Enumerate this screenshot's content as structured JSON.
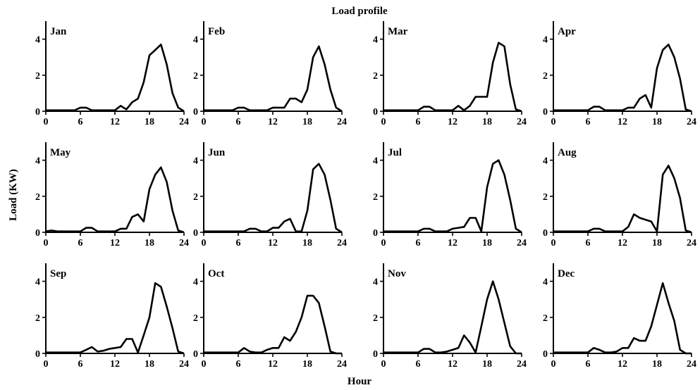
{
  "figure": {
    "title": "Load profile",
    "xlabel": "Hour",
    "ylabel": "Load (KW)"
  },
  "chart_data": {
    "type": "line",
    "x_ticks": [
      0,
      6,
      12,
      18,
      24
    ],
    "y_ticks": [
      0,
      2,
      4
    ],
    "xlim": [
      0,
      24
    ],
    "ylim": [
      0,
      5
    ],
    "grid": false,
    "x": [
      0,
      1,
      2,
      3,
      4,
      5,
      6,
      7,
      8,
      9,
      10,
      11,
      12,
      13,
      14,
      15,
      16,
      17,
      18,
      19,
      20,
      21,
      22,
      23,
      24
    ],
    "panels": [
      {
        "title": "Jan",
        "values": [
          0.05,
          0.05,
          0.05,
          0.05,
          0.05,
          0.05,
          0.2,
          0.2,
          0.05,
          0.05,
          0.05,
          0.05,
          0.05,
          0.3,
          0.1,
          0.5,
          0.7,
          1.6,
          3.1,
          3.4,
          3.7,
          2.6,
          1.0,
          0.2,
          0.0
        ]
      },
      {
        "title": "Feb",
        "values": [
          0.05,
          0.05,
          0.05,
          0.05,
          0.05,
          0.05,
          0.2,
          0.2,
          0.05,
          0.05,
          0.05,
          0.05,
          0.2,
          0.2,
          0.2,
          0.7,
          0.7,
          0.5,
          1.2,
          3.0,
          3.6,
          2.6,
          1.2,
          0.2,
          0.0
        ]
      },
      {
        "title": "Mar",
        "values": [
          0.05,
          0.05,
          0.05,
          0.05,
          0.05,
          0.05,
          0.05,
          0.25,
          0.25,
          0.05,
          0.05,
          0.05,
          0.05,
          0.3,
          0.05,
          0.3,
          0.8,
          0.8,
          0.8,
          2.7,
          3.8,
          3.6,
          1.5,
          0.1,
          0.0
        ]
      },
      {
        "title": "Apr",
        "values": [
          0.05,
          0.05,
          0.05,
          0.05,
          0.05,
          0.05,
          0.05,
          0.25,
          0.25,
          0.05,
          0.05,
          0.05,
          0.05,
          0.2,
          0.2,
          0.7,
          0.9,
          0.2,
          2.4,
          3.4,
          3.7,
          3.0,
          1.8,
          0.1,
          0.0
        ]
      },
      {
        "title": "May",
        "values": [
          0.05,
          0.1,
          0.05,
          0.05,
          0.05,
          0.05,
          0.05,
          0.25,
          0.25,
          0.05,
          0.05,
          0.05,
          0.05,
          0.2,
          0.2,
          0.85,
          1.0,
          0.6,
          2.4,
          3.2,
          3.6,
          2.8,
          1.2,
          0.1,
          0.0
        ]
      },
      {
        "title": "Jun",
        "values": [
          0.05,
          0.05,
          0.05,
          0.05,
          0.05,
          0.05,
          0.05,
          0.05,
          0.2,
          0.2,
          0.05,
          0.05,
          0.25,
          0.25,
          0.6,
          0.75,
          0.05,
          0.05,
          1.2,
          3.5,
          3.8,
          3.2,
          1.8,
          0.2,
          0.0
        ]
      },
      {
        "title": "Jul",
        "values": [
          0.05,
          0.05,
          0.05,
          0.05,
          0.05,
          0.05,
          0.05,
          0.2,
          0.2,
          0.05,
          0.05,
          0.05,
          0.2,
          0.25,
          0.3,
          0.8,
          0.8,
          0.05,
          2.5,
          3.8,
          4.0,
          3.2,
          1.8,
          0.2,
          0.0
        ]
      },
      {
        "title": "Aug",
        "values": [
          0.05,
          0.05,
          0.05,
          0.05,
          0.05,
          0.05,
          0.05,
          0.2,
          0.2,
          0.05,
          0.05,
          0.05,
          0.05,
          0.3,
          1.0,
          0.8,
          0.7,
          0.6,
          0.05,
          3.2,
          3.7,
          3.0,
          1.9,
          0.1,
          0.0
        ]
      },
      {
        "title": "Sep",
        "values": [
          0.05,
          0.05,
          0.05,
          0.05,
          0.05,
          0.05,
          0.05,
          0.2,
          0.35,
          0.1,
          0.15,
          0.25,
          0.3,
          0.35,
          0.8,
          0.8,
          0.05,
          1.0,
          2.0,
          3.9,
          3.7,
          2.6,
          1.4,
          0.1,
          0.0
        ]
      },
      {
        "title": "Oct",
        "values": [
          0.05,
          0.05,
          0.05,
          0.05,
          0.05,
          0.05,
          0.05,
          0.3,
          0.1,
          0.05,
          0.05,
          0.2,
          0.3,
          0.3,
          0.9,
          0.7,
          1.2,
          2.0,
          3.2,
          3.2,
          2.8,
          1.5,
          0.1,
          0.0,
          0.0
        ]
      },
      {
        "title": "Nov",
        "values": [
          0.05,
          0.05,
          0.05,
          0.05,
          0.05,
          0.05,
          0.05,
          0.25,
          0.25,
          0.05,
          0.05,
          0.1,
          0.2,
          0.3,
          1.0,
          0.6,
          0.05,
          1.5,
          3.0,
          4.0,
          3.0,
          1.7,
          0.4,
          0.0,
          0.0
        ]
      },
      {
        "title": "Dec",
        "values": [
          0.05,
          0.05,
          0.05,
          0.05,
          0.05,
          0.05,
          0.05,
          0.3,
          0.2,
          0.05,
          0.05,
          0.1,
          0.3,
          0.3,
          0.85,
          0.7,
          0.7,
          1.5,
          2.7,
          3.9,
          2.8,
          1.8,
          0.2,
          0.0,
          0.0
        ]
      }
    ]
  }
}
